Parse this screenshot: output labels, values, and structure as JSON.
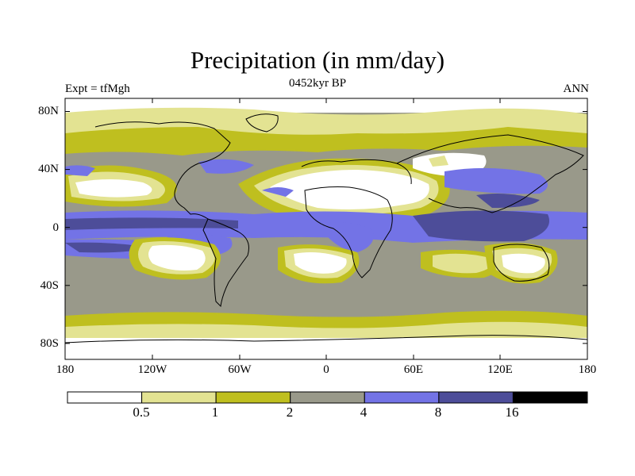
{
  "title": "Precipitation (in mm/day)",
  "subtitle": "0452kyr BP",
  "left_label": "Expt = tfMgh",
  "right_label": "ANN",
  "lat_ticks": [
    "80N",
    "40N",
    "0",
    "40S",
    "80S"
  ],
  "lon_ticks": [
    "180",
    "120W",
    "60W",
    "0",
    "60E",
    "120E",
    "180"
  ],
  "colorbar": {
    "levels": [
      "0.5",
      "1",
      "2",
      "4",
      "8",
      "16"
    ],
    "colors": [
      "#ffffff",
      "#e3e392",
      "#bfbf1f",
      "#99998a",
      "#7373e6",
      "#4d4d99",
      "#000000"
    ]
  },
  "colors": {
    "ocean_base": "#99998a",
    "coast": "#000000"
  }
}
